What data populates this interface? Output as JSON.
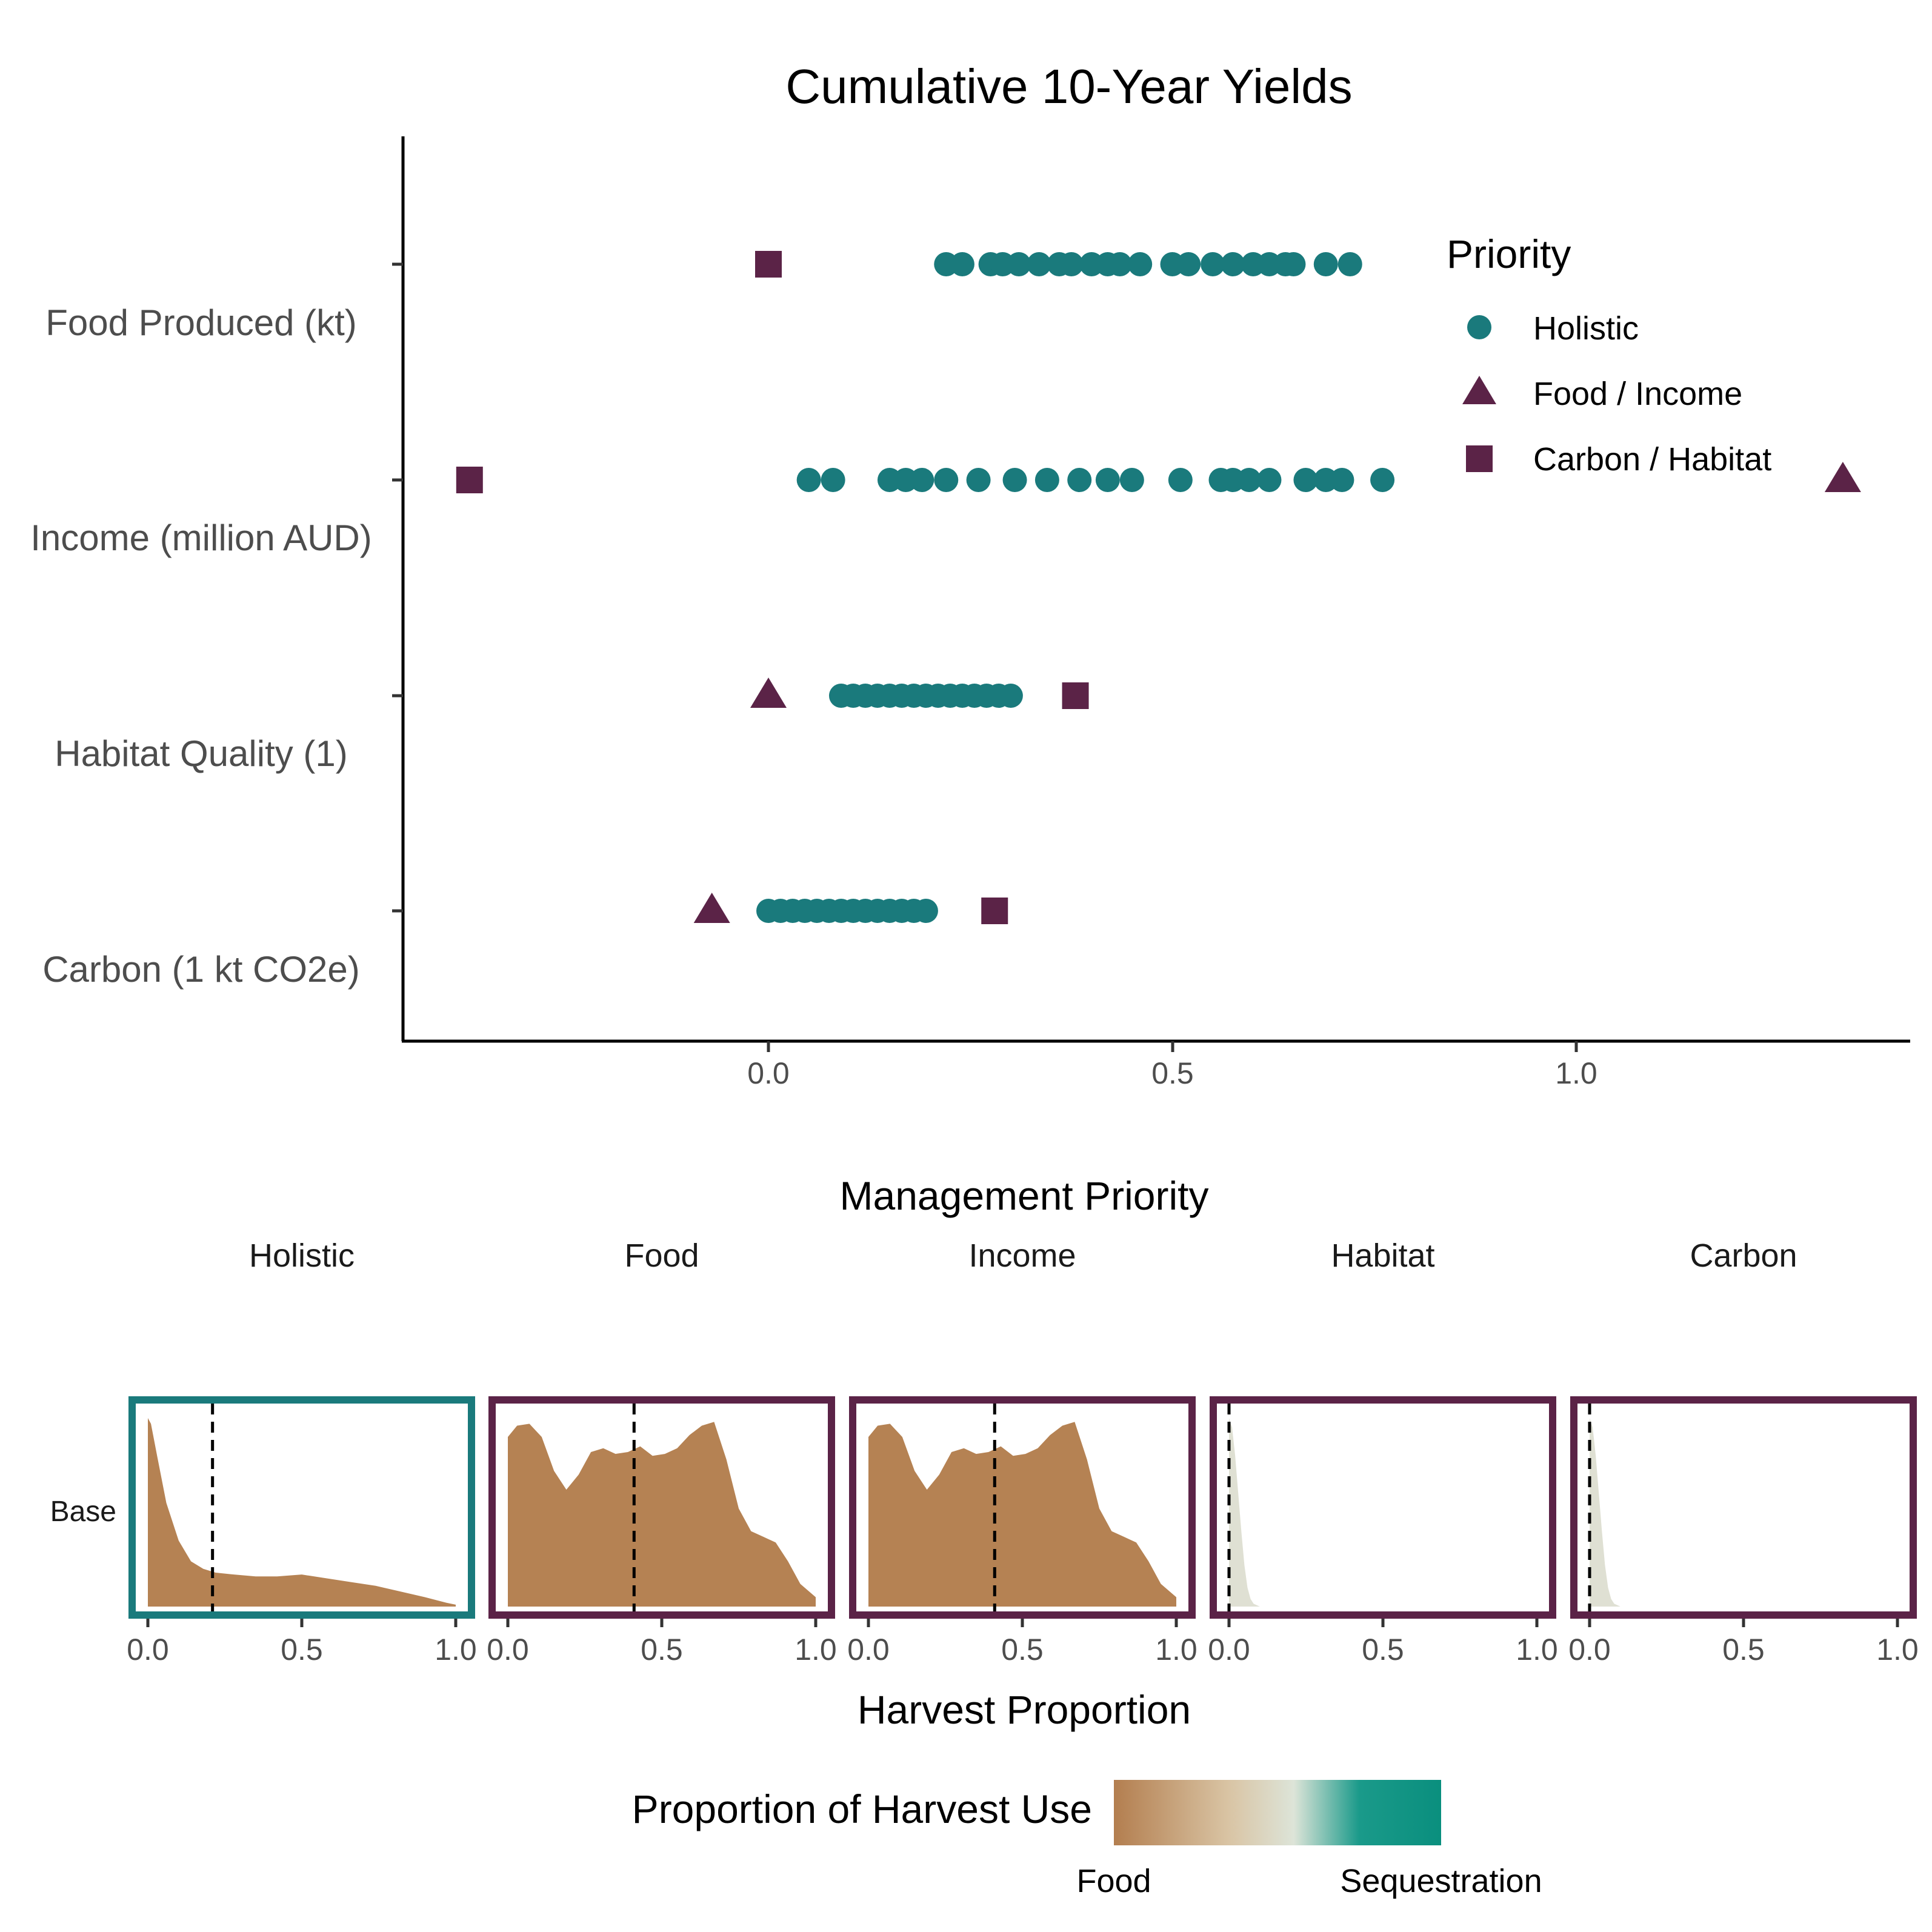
{
  "chart_data": [
    {
      "type": "scatter",
      "title": "Cumulative 10-Year Yields",
      "categories": [
        "Food Produced (kt)",
        "Income (million AUD)",
        "Habitat Quality (1)",
        "Carbon (1 kt CO2e)"
      ],
      "xticks": [
        "0.0",
        "0.5",
        "1.0"
      ],
      "xlim": [
        -0.455,
        1.4
      ],
      "legend": {
        "title": "Priority",
        "placement": "top-right",
        "entries": [
          {
            "label": "Holistic",
            "shape": "circle",
            "color": "#1a7a7c"
          },
          {
            "label": "Food / Income",
            "shape": "triangle",
            "color": "#5b2347"
          },
          {
            "label": "Carbon / Habitat",
            "shape": "square",
            "color": "#5b2347"
          }
        ]
      },
      "series": [
        {
          "name": "Holistic",
          "shape": "circle",
          "color": "#1a7a7c",
          "points": {
            "Food Produced (kt)": [
              0.22,
              0.24,
              0.275,
              0.29,
              0.31,
              0.335,
              0.36,
              0.375,
              0.4,
              0.42,
              0.435,
              0.46,
              0.5,
              0.52,
              0.55,
              0.575,
              0.6,
              0.62,
              0.64,
              0.65,
              0.69,
              0.72
            ],
            "Income (million AUD)": [
              0.05,
              0.08,
              0.15,
              0.17,
              0.19,
              0.22,
              0.26,
              0.305,
              0.345,
              0.385,
              0.42,
              0.45,
              0.51,
              0.56,
              0.575,
              0.595,
              0.62,
              0.665,
              0.69,
              0.71,
              0.76
            ],
            "Habitat Quality (1)": [
              0.09,
              0.105,
              0.12,
              0.135,
              0.15,
              0.165,
              0.18,
              0.195,
              0.21,
              0.225,
              0.24,
              0.255,
              0.27,
              0.285,
              0.3
            ],
            "Carbon (1 kt CO2e)": [
              0.0,
              0.015,
              0.03,
              0.045,
              0.06,
              0.075,
              0.09,
              0.105,
              0.12,
              0.135,
              0.15,
              0.165,
              0.18,
              0.195
            ]
          }
        },
        {
          "name": "Food / Income",
          "shape": "triangle",
          "color": "#5b2347",
          "points": {
            "Income (million AUD)": [
              1.33
            ],
            "Habitat Quality (1)": [
              0.0
            ],
            "Carbon (1 kt CO2e)": [
              -0.07
            ]
          }
        },
        {
          "name": "Carbon / Habitat",
          "shape": "square",
          "color": "#5b2347",
          "points": {
            "Food Produced (kt)": [
              0.0
            ],
            "Income (million AUD)": [
              -0.37
            ],
            "Habitat Quality (1)": [
              0.38
            ],
            "Carbon (1 kt CO2e)": [
              0.28
            ]
          }
        }
      ]
    },
    {
      "type": "area",
      "facet_title": "Management Priority",
      "xlabel": "Harvest Proportion",
      "row_label": "Base",
      "xlim": [
        0,
        1
      ],
      "xticks": [
        "0.0",
        "0.5",
        "1.0"
      ],
      "colorbar": {
        "title": "Proportion of Harvest Use",
        "left_label": "Food",
        "right_label": "Sequestration",
        "colors": [
          "#b37e4f",
          "#d9c4a4",
          "#dde4d8",
          "#1a9a8a",
          "#0a8f7e"
        ]
      },
      "panels": [
        {
          "name": "Holistic",
          "border": "#1a7a7c",
          "fill": "#b58253",
          "median": 0.21,
          "x": [
            0.0,
            0.01,
            0.03,
            0.06,
            0.1,
            0.14,
            0.18,
            0.22,
            0.28,
            0.35,
            0.42,
            0.5,
            0.58,
            0.66,
            0.74,
            0.82,
            0.9,
            0.97,
            1.0
          ],
          "density": [
            1.0,
            0.97,
            0.8,
            0.55,
            0.35,
            0.24,
            0.2,
            0.18,
            0.17,
            0.16,
            0.16,
            0.17,
            0.15,
            0.13,
            0.11,
            0.08,
            0.05,
            0.02,
            0.01
          ]
        },
        {
          "name": "Food",
          "border": "#5b2347",
          "fill": "#b58253",
          "median": 0.41,
          "x": [
            0.0,
            0.03,
            0.07,
            0.11,
            0.15,
            0.19,
            0.23,
            0.27,
            0.31,
            0.35,
            0.39,
            0.43,
            0.47,
            0.51,
            0.55,
            0.59,
            0.63,
            0.67,
            0.71,
            0.75,
            0.79,
            0.83,
            0.87,
            0.91,
            0.95,
            1.0
          ],
          "density": [
            0.9,
            0.96,
            0.97,
            0.9,
            0.72,
            0.62,
            0.7,
            0.82,
            0.84,
            0.81,
            0.82,
            0.85,
            0.8,
            0.81,
            0.84,
            0.91,
            0.96,
            0.98,
            0.78,
            0.52,
            0.4,
            0.37,
            0.34,
            0.24,
            0.12,
            0.05
          ]
        },
        {
          "name": "Income",
          "border": "#5b2347",
          "fill": "#b58253",
          "median": 0.41,
          "x": [
            0.0,
            0.03,
            0.07,
            0.11,
            0.15,
            0.19,
            0.23,
            0.27,
            0.31,
            0.35,
            0.39,
            0.43,
            0.47,
            0.51,
            0.55,
            0.59,
            0.63,
            0.67,
            0.71,
            0.75,
            0.79,
            0.83,
            0.87,
            0.91,
            0.95,
            1.0
          ],
          "density": [
            0.9,
            0.96,
            0.97,
            0.9,
            0.72,
            0.62,
            0.7,
            0.82,
            0.84,
            0.81,
            0.82,
            0.85,
            0.8,
            0.81,
            0.84,
            0.91,
            0.96,
            0.98,
            0.78,
            0.52,
            0.4,
            0.37,
            0.34,
            0.24,
            0.12,
            0.05
          ]
        },
        {
          "name": "Habitat",
          "border": "#5b2347",
          "fill": "#dfe0d3",
          "median": 0.0,
          "x": [
            0.0,
            0.01,
            0.02,
            0.03,
            0.04,
            0.05,
            0.06,
            0.07,
            0.08,
            0.1
          ],
          "density": [
            1.0,
            0.95,
            0.8,
            0.6,
            0.4,
            0.22,
            0.1,
            0.04,
            0.015,
            0.0
          ]
        },
        {
          "name": "Carbon",
          "border": "#5b2347",
          "fill": "#dfe0d3",
          "median": 0.0,
          "x": [
            0.0,
            0.01,
            0.02,
            0.03,
            0.04,
            0.05,
            0.06,
            0.07,
            0.08,
            0.1
          ],
          "density": [
            1.0,
            0.95,
            0.8,
            0.6,
            0.4,
            0.22,
            0.1,
            0.04,
            0.015,
            0.0
          ]
        }
      ]
    }
  ]
}
